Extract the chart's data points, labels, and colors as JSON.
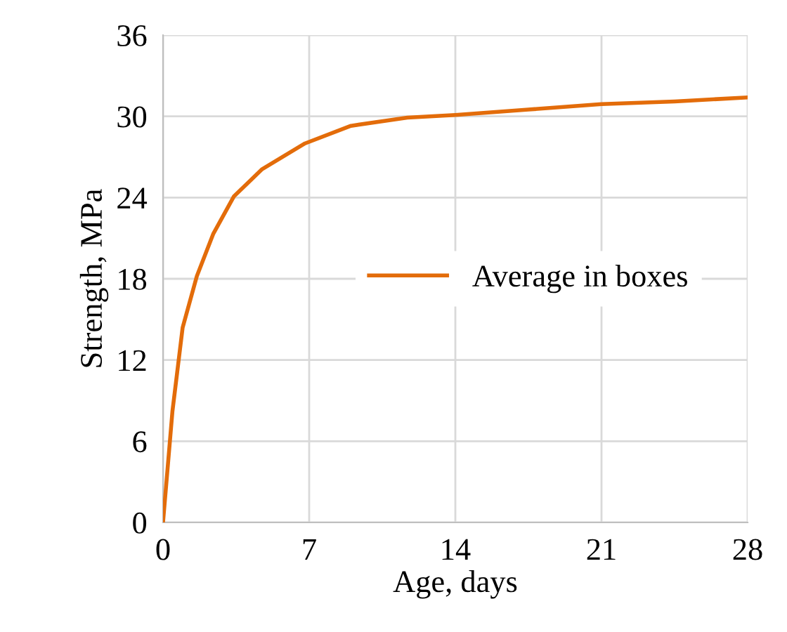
{
  "chart_data": {
    "type": "line",
    "xlabel": "Age, days",
    "ylabel": "Strength, MPa",
    "xlim": [
      0,
      28
    ],
    "xticks": [
      0,
      7,
      14,
      21,
      28
    ],
    "ylim": [
      0,
      36
    ],
    "yticks": [
      0,
      6,
      12,
      18,
      24,
      30,
      36
    ],
    "grid": true,
    "legend": "right",
    "marker": "none",
    "line_style": "solid",
    "series": [
      {
        "name": "Average in boxes",
        "color": "#e36c0a",
        "x": [
          0,
          0.45,
          0.94,
          1.62,
          2.4,
          3.4,
          4.75,
          6.8,
          9.0,
          11.7,
          14,
          17.5,
          21,
          24.5,
          28
        ],
        "values": [
          0,
          8.2,
          14.4,
          18.2,
          21.3,
          24.1,
          26.1,
          28.0,
          29.3,
          29.9,
          30.1,
          30.5,
          30.9,
          31.1,
          31.4
        ]
      }
    ]
  }
}
